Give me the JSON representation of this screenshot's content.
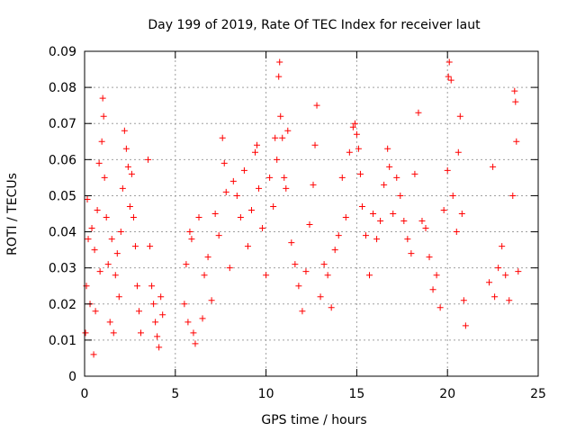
{
  "chart_data": {
    "type": "scatter",
    "title": "Day 199 of 2019, Rate Of TEC Index for receiver laut",
    "xlabel": "GPS time / hours",
    "ylabel": "ROTI / TECUs",
    "xlim": [
      0,
      25
    ],
    "ylim": [
      0,
      0.09
    ],
    "x_ticks": [
      0,
      5,
      10,
      15,
      20,
      25
    ],
    "x_tick_labels": [
      "0",
      "5",
      "10",
      "15",
      "20",
      "25"
    ],
    "y_ticks": [
      0,
      0.01,
      0.02,
      0.03,
      0.04,
      0.05,
      0.06,
      0.07,
      0.08,
      0.09
    ],
    "y_tick_labels": [
      "0",
      "0.01",
      "0.02",
      "0.03",
      "0.04",
      "0.05",
      "0.06",
      "0.07",
      "0.08",
      "0.09"
    ],
    "grid": true,
    "marker": "plus",
    "marker_color": "#ff0000",
    "series": [
      {
        "name": "ROTI",
        "points": [
          [
            0.05,
            0.012
          ],
          [
            0.1,
            0.025
          ],
          [
            0.15,
            0.049
          ],
          [
            0.2,
            0.038
          ],
          [
            0.3,
            0.02
          ],
          [
            0.4,
            0.041
          ],
          [
            0.5,
            0.006
          ],
          [
            0.55,
            0.035
          ],
          [
            0.6,
            0.018
          ],
          [
            0.7,
            0.046
          ],
          [
            0.8,
            0.059
          ],
          [
            0.85,
            0.029
          ],
          [
            0.95,
            0.065
          ],
          [
            1.0,
            0.077
          ],
          [
            1.05,
            0.072
          ],
          [
            1.1,
            0.055
          ],
          [
            1.2,
            0.044
          ],
          [
            1.3,
            0.031
          ],
          [
            1.4,
            0.015
          ],
          [
            1.5,
            0.038
          ],
          [
            1.6,
            0.012
          ],
          [
            1.7,
            0.028
          ],
          [
            1.8,
            0.034
          ],
          [
            1.9,
            0.022
          ],
          [
            2.0,
            0.04
          ],
          [
            2.1,
            0.052
          ],
          [
            2.2,
            0.068
          ],
          [
            2.3,
            0.063
          ],
          [
            2.4,
            0.058
          ],
          [
            2.5,
            0.047
          ],
          [
            2.6,
            0.056
          ],
          [
            2.7,
            0.044
          ],
          [
            2.8,
            0.036
          ],
          [
            2.9,
            0.025
          ],
          [
            3.0,
            0.018
          ],
          [
            3.1,
            0.012
          ],
          [
            3.5,
            0.06
          ],
          [
            3.6,
            0.036
          ],
          [
            3.7,
            0.025
          ],
          [
            3.8,
            0.02
          ],
          [
            3.9,
            0.015
          ],
          [
            4.0,
            0.011
          ],
          [
            4.1,
            0.008
          ],
          [
            4.2,
            0.022
          ],
          [
            4.3,
            0.017
          ],
          [
            5.5,
            0.02
          ],
          [
            5.6,
            0.031
          ],
          [
            5.7,
            0.015
          ],
          [
            5.8,
            0.04
          ],
          [
            5.9,
            0.038
          ],
          [
            6.0,
            0.012
          ],
          [
            6.1,
            0.009
          ],
          [
            6.3,
            0.044
          ],
          [
            6.5,
            0.016
          ],
          [
            6.6,
            0.028
          ],
          [
            6.8,
            0.033
          ],
          [
            7.0,
            0.021
          ],
          [
            7.2,
            0.045
          ],
          [
            7.4,
            0.039
          ],
          [
            7.6,
            0.066
          ],
          [
            7.7,
            0.059
          ],
          [
            7.8,
            0.051
          ],
          [
            8.0,
            0.03
          ],
          [
            8.2,
            0.054
          ],
          [
            8.4,
            0.05
          ],
          [
            8.6,
            0.044
          ],
          [
            8.8,
            0.057
          ],
          [
            9.0,
            0.036
          ],
          [
            9.2,
            0.046
          ],
          [
            9.4,
            0.062
          ],
          [
            9.5,
            0.064
          ],
          [
            9.6,
            0.052
          ],
          [
            9.8,
            0.041
          ],
          [
            10.0,
            0.028
          ],
          [
            10.2,
            0.055
          ],
          [
            10.4,
            0.047
          ],
          [
            10.5,
            0.066
          ],
          [
            10.6,
            0.06
          ],
          [
            10.7,
            0.083
          ],
          [
            10.75,
            0.087
          ],
          [
            10.8,
            0.072
          ],
          [
            10.9,
            0.066
          ],
          [
            11.0,
            0.055
          ],
          [
            11.1,
            0.052
          ],
          [
            11.2,
            0.068
          ],
          [
            11.4,
            0.037
          ],
          [
            11.6,
            0.031
          ],
          [
            11.8,
            0.025
          ],
          [
            12.0,
            0.018
          ],
          [
            12.2,
            0.029
          ],
          [
            12.4,
            0.042
          ],
          [
            12.6,
            0.053
          ],
          [
            12.7,
            0.064
          ],
          [
            12.8,
            0.075
          ],
          [
            13.0,
            0.022
          ],
          [
            13.2,
            0.031
          ],
          [
            13.4,
            0.028
          ],
          [
            13.6,
            0.019
          ],
          [
            13.8,
            0.035
          ],
          [
            14.0,
            0.039
          ],
          [
            14.2,
            0.055
          ],
          [
            14.4,
            0.044
          ],
          [
            14.6,
            0.062
          ],
          [
            14.8,
            0.069
          ],
          [
            14.9,
            0.07
          ],
          [
            15.0,
            0.067
          ],
          [
            15.1,
            0.063
          ],
          [
            15.2,
            0.056
          ],
          [
            15.3,
            0.047
          ],
          [
            15.5,
            0.039
          ],
          [
            15.7,
            0.028
          ],
          [
            15.9,
            0.045
          ],
          [
            16.1,
            0.038
          ],
          [
            16.3,
            0.043
          ],
          [
            16.5,
            0.053
          ],
          [
            16.7,
            0.063
          ],
          [
            16.8,
            0.058
          ],
          [
            17.0,
            0.045
          ],
          [
            17.2,
            0.055
          ],
          [
            17.4,
            0.05
          ],
          [
            17.6,
            0.043
          ],
          [
            17.8,
            0.038
          ],
          [
            18.0,
            0.034
          ],
          [
            18.2,
            0.056
          ],
          [
            18.4,
            0.073
          ],
          [
            18.6,
            0.043
          ],
          [
            18.8,
            0.041
          ],
          [
            19.0,
            0.033
          ],
          [
            19.2,
            0.024
          ],
          [
            19.4,
            0.028
          ],
          [
            19.6,
            0.019
          ],
          [
            19.8,
            0.046
          ],
          [
            20.0,
            0.057
          ],
          [
            20.05,
            0.083
          ],
          [
            20.1,
            0.087
          ],
          [
            20.2,
            0.082
          ],
          [
            20.3,
            0.05
          ],
          [
            20.5,
            0.04
          ],
          [
            20.6,
            0.062
          ],
          [
            20.7,
            0.072
          ],
          [
            20.8,
            0.045
          ],
          [
            20.9,
            0.021
          ],
          [
            21.0,
            0.014
          ],
          [
            22.3,
            0.026
          ],
          [
            22.5,
            0.058
          ],
          [
            22.6,
            0.022
          ],
          [
            22.8,
            0.03
          ],
          [
            23.0,
            0.036
          ],
          [
            23.2,
            0.028
          ],
          [
            23.4,
            0.021
          ],
          [
            23.6,
            0.05
          ],
          [
            23.7,
            0.079
          ],
          [
            23.75,
            0.076
          ],
          [
            23.8,
            0.065
          ],
          [
            23.9,
            0.029
          ]
        ]
      }
    ]
  }
}
